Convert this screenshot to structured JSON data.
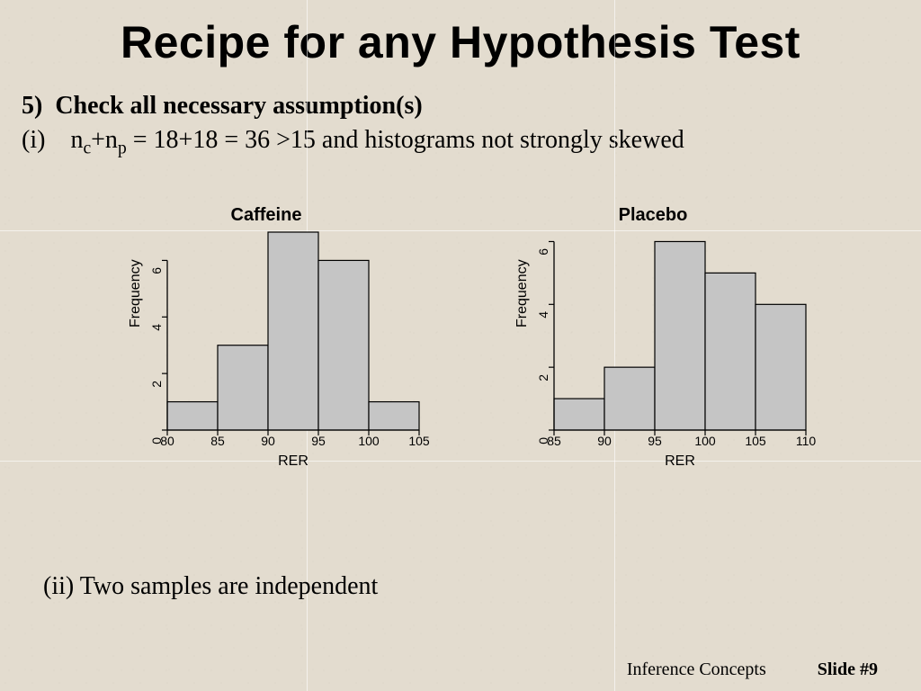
{
  "background_color": "#e3dccf",
  "grid_line_color": "#ffffff",
  "title": "Recipe for any Hypothesis Test",
  "title_fontsize": 50,
  "title_fontfamily": "Arial",
  "body_fontfamily": "Times New Roman",
  "body_fontsize": 28,
  "step_number": "5)",
  "step_text": "Check all necessary assumption(s)",
  "assumption_i_label": "(i)",
  "assumption_i_html": "n<sub>c</sub>+n<sub>p</sub> = 18+18 = 36 >15 and histograms not strongly skewed",
  "assumption_ii": "(ii) Two samples are independent",
  "footer_left": "Inference Concepts",
  "footer_right": "Slide #9",
  "charts": {
    "caffeine": {
      "type": "histogram",
      "title": "Caffeine",
      "xlabel": "RER",
      "ylabel": "Frequency",
      "bar_fill": "#c5c5c5",
      "bar_stroke": "#000000",
      "axis_color": "#000000",
      "label_fontsize": 16,
      "tick_fontsize": 14,
      "title_fontsize": 20,
      "xlim": [
        80,
        105
      ],
      "xticks": [
        80,
        85,
        90,
        95,
        100,
        105
      ],
      "ylim": [
        0,
        7
      ],
      "yticks": [
        0,
        2,
        4,
        6
      ],
      "bin_edges": [
        80,
        85,
        90,
        95,
        100,
        105
      ],
      "values": [
        1,
        3,
        7,
        6,
        1
      ]
    },
    "placebo": {
      "type": "histogram",
      "title": "Placebo",
      "xlabel": "RER",
      "ylabel": "Frequency",
      "bar_fill": "#c5c5c5",
      "bar_stroke": "#000000",
      "axis_color": "#000000",
      "label_fontsize": 16,
      "tick_fontsize": 14,
      "title_fontsize": 20,
      "xlim": [
        85,
        110
      ],
      "xticks": [
        85,
        90,
        95,
        100,
        105,
        110
      ],
      "ylim": [
        0,
        6.3
      ],
      "yticks": [
        0,
        2,
        4,
        6
      ],
      "bin_edges": [
        85,
        90,
        95,
        100,
        105,
        110
      ],
      "values": [
        1,
        2,
        6,
        5,
        4
      ]
    }
  }
}
